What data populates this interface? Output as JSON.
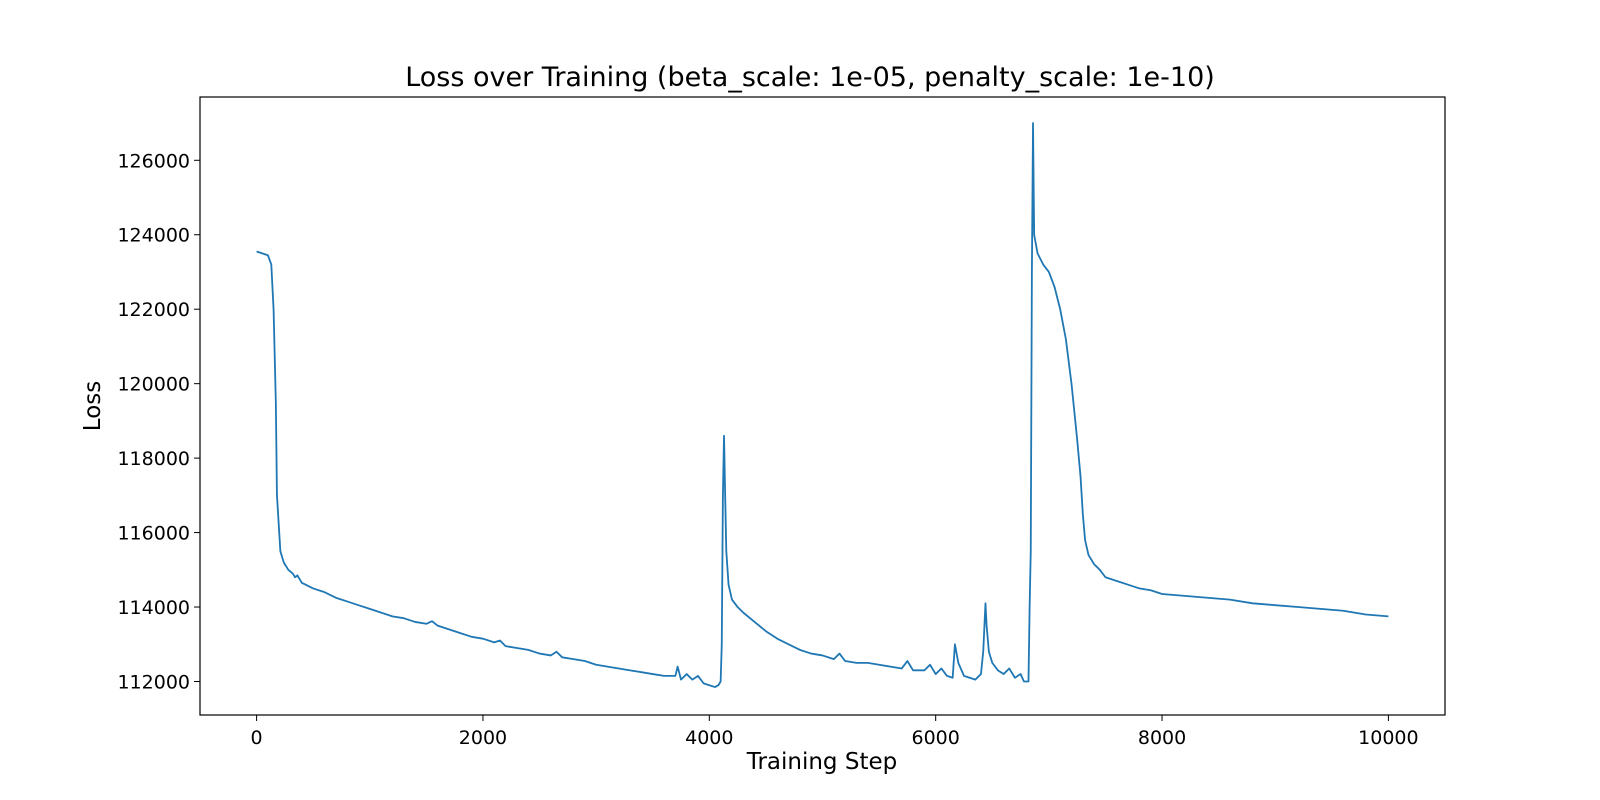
{
  "chart_data": {
    "type": "line",
    "title": "Loss over Training (beta_scale: 1e-05, penalty_scale: 1e-10)",
    "xlabel": "Training Step",
    "ylabel": "Loss",
    "xlim": [
      -500,
      10500
    ],
    "ylim": [
      111100,
      127700
    ],
    "xticks": [
      0,
      2000,
      4000,
      6000,
      8000,
      10000
    ],
    "xtick_labels": [
      "0",
      "2000",
      "4000",
      "6000",
      "8000",
      "10000"
    ],
    "yticks": [
      112000,
      114000,
      116000,
      118000,
      120000,
      122000,
      124000,
      126000
    ],
    "ytick_labels": [
      "112000",
      "114000",
      "116000",
      "118000",
      "120000",
      "122000",
      "124000",
      "126000"
    ],
    "grid": false,
    "line_color": "#1f77b4",
    "series": [
      {
        "x": [
          0,
          50,
          100,
          130,
          150,
          170,
          180,
          200,
          210,
          240,
          280,
          320,
          340,
          360,
          400,
          500,
          600,
          700,
          800,
          900,
          1000,
          1100,
          1200,
          1300,
          1400,
          1500,
          1550,
          1600,
          1700,
          1800,
          1900,
          2000,
          2100,
          2150,
          2200,
          2300,
          2400,
          2500,
          2600,
          2650,
          2700,
          2800,
          2900,
          3000,
          3100,
          3200,
          3300,
          3400,
          3500,
          3600,
          3700,
          3720,
          3750,
          3800,
          3850,
          3900,
          3950,
          4000,
          4050,
          4080,
          4100,
          4110,
          4120,
          4130,
          4140,
          4150,
          4170,
          4200,
          4250,
          4300,
          4400,
          4500,
          4600,
          4700,
          4800,
          4900,
          5000,
          5100,
          5150,
          5200,
          5300,
          5400,
          5500,
          5600,
          5700,
          5750,
          5800,
          5900,
          5950,
          6000,
          6050,
          6100,
          6150,
          6170,
          6200,
          6250,
          6300,
          6350,
          6400,
          6420,
          6440,
          6450,
          6470,
          6500,
          6550,
          6600,
          6650,
          6700,
          6750,
          6780,
          6800,
          6820,
          6830,
          6840,
          6850,
          6860,
          6870,
          6900,
          6950,
          7000,
          7050,
          7100,
          7150,
          7200,
          7250,
          7280,
          7300,
          7320,
          7350,
          7400,
          7450,
          7500,
          7600,
          7700,
          7800,
          7900,
          8000,
          8200,
          8400,
          8600,
          8800,
          9000,
          9200,
          9400,
          9600,
          9800,
          10000
        ],
        "y": [
          123550,
          123500,
          123450,
          123200,
          122000,
          119500,
          117000,
          116000,
          115500,
          115200,
          115000,
          114900,
          114800,
          114850,
          114650,
          114500,
          114400,
          114250,
          114150,
          114050,
          113950,
          113850,
          113750,
          113700,
          113600,
          113550,
          113620,
          113500,
          113400,
          113300,
          113200,
          113150,
          113050,
          113100,
          112950,
          112900,
          112850,
          112750,
          112700,
          112800,
          112650,
          112600,
          112550,
          112450,
          112400,
          112350,
          112300,
          112250,
          112200,
          112150,
          112150,
          112400,
          112050,
          112200,
          112050,
          112150,
          111950,
          111900,
          111850,
          111900,
          112000,
          113000,
          117000,
          118600,
          117000,
          115500,
          114600,
          114200,
          114000,
          113850,
          113600,
          113350,
          113150,
          113000,
          112850,
          112750,
          112700,
          112600,
          112750,
          112550,
          112500,
          112500,
          112450,
          112400,
          112350,
          112550,
          112300,
          112300,
          112450,
          112200,
          112350,
          112150,
          112100,
          113000,
          112500,
          112150,
          112100,
          112050,
          112200,
          112800,
          114100,
          113500,
          112800,
          112500,
          112300,
          112200,
          112350,
          112100,
          112200,
          112000,
          112000,
          112000,
          114000,
          115500,
          123000,
          127000,
          124000,
          123500,
          123200,
          123000,
          122600,
          122000,
          121200,
          120000,
          118500,
          117500,
          116500,
          115800,
          115400,
          115150,
          115000,
          114800,
          114700,
          114600,
          114500,
          114450,
          114350,
          114300,
          114250,
          114200,
          114100,
          114050,
          114000,
          113950,
          113900,
          113800,
          113750
        ]
      }
    ]
  }
}
